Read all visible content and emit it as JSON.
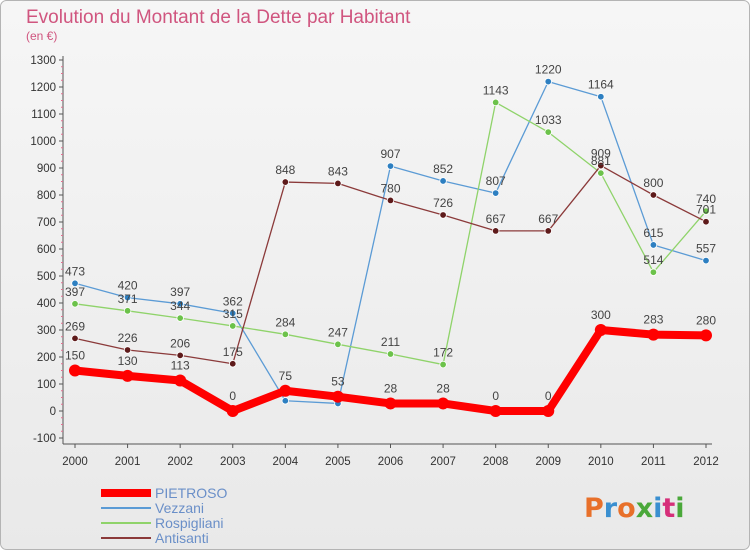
{
  "header": {
    "title": "Evolution du Montant de la Dette par Habitant",
    "subtitle": "(en €)"
  },
  "logo": {
    "text": "Proxiti",
    "colors": [
      "#e8702a",
      "#3a8fd0",
      "#e8702a",
      "#4aa83a",
      "#3a8fd0",
      "#d62f7a",
      "#4aa83a"
    ]
  },
  "chart_data": {
    "type": "line",
    "title": "Evolution du Montant de la Dette par Habitant",
    "subtitle": "(en €)",
    "x": [
      "2000",
      "2001",
      "2002",
      "2003",
      "2004",
      "2005",
      "2006",
      "2007",
      "2008",
      "2009",
      "2010",
      "2011",
      "2012"
    ],
    "ylim": [
      -100,
      1300
    ],
    "yticks": [
      -100,
      0,
      100,
      200,
      300,
      400,
      500,
      600,
      700,
      800,
      900,
      1000,
      1100,
      1200,
      1300
    ],
    "grid": false,
    "legend": "bottom-left",
    "series": [
      {
        "name": "Vezzani",
        "color": "#5b9bd5",
        "marker": "#2d7fc1",
        "values": [
          473,
          420,
          397,
          362,
          38,
          28,
          907,
          852,
          807,
          1220,
          1164,
          615,
          557
        ],
        "labels": [
          "473",
          "420",
          "397",
          "362",
          "",
          "",
          "907",
          "852",
          "807",
          "1220",
          "1164",
          "615",
          "557"
        ]
      },
      {
        "name": "Rospigliani",
        "color": "#8fd36a",
        "marker": "#6cc24a",
        "values": [
          397,
          371,
          344,
          315,
          284,
          247,
          211,
          172,
          1143,
          1033,
          881,
          514,
          740
        ],
        "labels": [
          "397",
          "371",
          "344",
          "315",
          "284",
          "247",
          "211",
          "172",
          "1143",
          "1033",
          "881",
          "514",
          "740"
        ]
      },
      {
        "name": "Antisanti",
        "color": "#8b3a3a",
        "marker": "#5e1a1a",
        "values": [
          269,
          226,
          206,
          175,
          848,
          843,
          780,
          726,
          667,
          667,
          909,
          800,
          701
        ],
        "labels": [
          "269",
          "226",
          "206",
          "175",
          "848",
          "843",
          "780",
          "726",
          "667",
          "667",
          "909",
          "800",
          "701"
        ]
      },
      {
        "name": "PIETROSO",
        "color": "#ff0000",
        "marker": "#ff0000",
        "values": [
          150,
          130,
          113,
          0,
          75,
          53,
          28,
          28,
          0,
          0,
          300,
          283,
          280
        ],
        "labels": [
          "150",
          "130",
          "113",
          "0",
          "75",
          "53",
          "28",
          "28",
          "0",
          "0",
          "300",
          "283",
          "280"
        ]
      }
    ],
    "legend_order": [
      "PIETROSO",
      "Vezzani",
      "Rospigliani",
      "Antisanti"
    ]
  }
}
